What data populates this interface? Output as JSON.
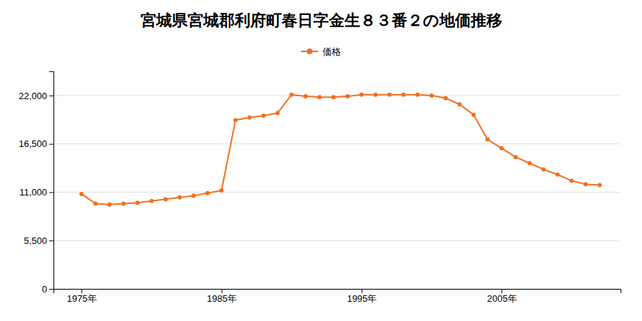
{
  "chart_data": {
    "type": "line",
    "title": "宮城県宮城郡利府町春日字金生８３番２の地価推移",
    "x": [
      1975,
      1976,
      1977,
      1978,
      1979,
      1980,
      1981,
      1982,
      1983,
      1984,
      1985,
      1986,
      1987,
      1988,
      1989,
      1990,
      1991,
      1992,
      1993,
      1994,
      1995,
      1996,
      1997,
      1998,
      1999,
      2000,
      2001,
      2002,
      2003,
      2004,
      2005,
      2006,
      2007,
      2008,
      2009,
      2010,
      2011,
      2012
    ],
    "series": [
      {
        "name": "価格",
        "color": "#f07020",
        "marker": "circle",
        "line_style": "solid",
        "values": [
          10800,
          9700,
          9600,
          9700,
          9800,
          10000,
          10200,
          10400,
          10600,
          10900,
          11200,
          19200,
          19500,
          19700,
          20000,
          22100,
          21900,
          21800,
          21800,
          21900,
          22100,
          22100,
          22100,
          22100,
          22100,
          22000,
          21700,
          21000,
          19800,
          17000,
          16000,
          15000,
          14300,
          13600,
          13000,
          12300,
          11900,
          11800
        ]
      }
    ],
    "xlim": [
      1973,
      2013.5
    ],
    "xticks": [
      {
        "value": 1975,
        "label": "1975年"
      },
      {
        "value": 1985,
        "label": "1985年"
      },
      {
        "value": 1995,
        "label": "1995年"
      },
      {
        "value": 2005,
        "label": "2005年"
      }
    ],
    "ylim": [
      0,
      24750
    ],
    "yticks": [
      0,
      {
        "value": 5500,
        "label": "5,500"
      },
      {
        "value": 11000,
        "label": "11,000"
      },
      {
        "value": 16500,
        "label": "16,500"
      },
      {
        "value": 22000,
        "label": "22,000"
      }
    ],
    "grid": "y",
    "legend": "top"
  }
}
